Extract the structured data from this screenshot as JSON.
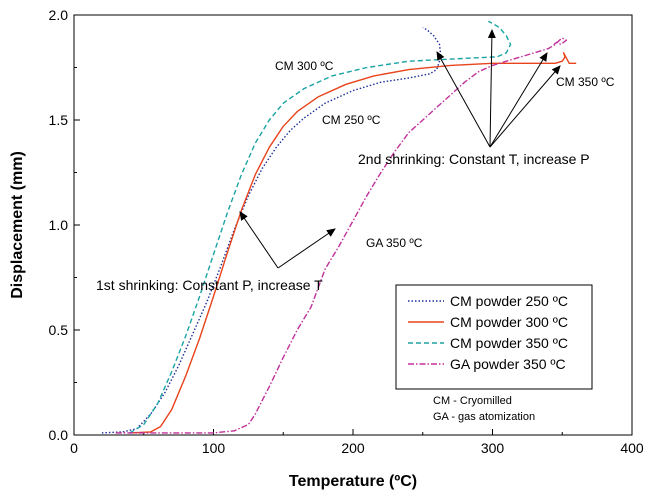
{
  "chart_data": {
    "type": "line",
    "xlabel": "Temperature (ºC)",
    "ylabel": "Displacement (mm)",
    "xlim": [
      0,
      400
    ],
    "ylim": [
      0,
      2.0
    ],
    "x_ticks": [
      "0",
      "100",
      "200",
      "300",
      "400"
    ],
    "y_ticks": [
      "0.0",
      "0.5",
      "1.0",
      "1.5",
      "2.0"
    ],
    "x_tick_values": [
      0,
      100,
      200,
      300,
      400
    ],
    "y_tick_values": [
      0,
      0.5,
      1.0,
      1.5,
      2.0
    ],
    "grid": false,
    "legend_position": "lower-right",
    "series": [
      {
        "name": "CM powder 250 ºC",
        "color": "#1f2f9a",
        "dash": "dotted",
        "points": [
          [
            20,
            0.01
          ],
          [
            35,
            0.015
          ],
          [
            45,
            0.03
          ],
          [
            55,
            0.1
          ],
          [
            65,
            0.2
          ],
          [
            75,
            0.33
          ],
          [
            85,
            0.48
          ],
          [
            95,
            0.63
          ],
          [
            105,
            0.8
          ],
          [
            115,
            0.98
          ],
          [
            125,
            1.14
          ],
          [
            135,
            1.27
          ],
          [
            145,
            1.37
          ],
          [
            155,
            1.45
          ],
          [
            165,
            1.51
          ],
          [
            180,
            1.58
          ],
          [
            200,
            1.64
          ],
          [
            220,
            1.68
          ],
          [
            240,
            1.7
          ],
          [
            255,
            1.72
          ],
          [
            260,
            1.74
          ],
          [
            263,
            1.8
          ],
          [
            262,
            1.86
          ],
          [
            258,
            1.9
          ],
          [
            253,
            1.93
          ],
          [
            250,
            1.94
          ]
        ]
      },
      {
        "name": "CM powder 300 ºC",
        "color": "#e8431b",
        "dash": "solid",
        "points": [
          [
            40,
            0.01
          ],
          [
            55,
            0.015
          ],
          [
            62,
            0.04
          ],
          [
            70,
            0.12
          ],
          [
            80,
            0.28
          ],
          [
            90,
            0.46
          ],
          [
            100,
            0.66
          ],
          [
            110,
            0.87
          ],
          [
            120,
            1.07
          ],
          [
            130,
            1.24
          ],
          [
            140,
            1.37
          ],
          [
            150,
            1.47
          ],
          [
            160,
            1.54
          ],
          [
            175,
            1.61
          ],
          [
            195,
            1.67
          ],
          [
            215,
            1.71
          ],
          [
            240,
            1.74
          ],
          [
            270,
            1.76
          ],
          [
            300,
            1.77
          ],
          [
            330,
            1.77
          ],
          [
            345,
            1.77
          ],
          [
            350,
            1.78
          ],
          [
            352,
            1.8
          ],
          [
            351,
            1.82
          ],
          [
            355,
            1.77
          ],
          [
            360,
            1.77
          ]
        ]
      },
      {
        "name": "CM powder 350 ºC",
        "color": "#1aa3a3",
        "dash": "dashed",
        "points": [
          [
            40,
            0.01
          ],
          [
            50,
            0.05
          ],
          [
            60,
            0.15
          ],
          [
            70,
            0.3
          ],
          [
            80,
            0.47
          ],
          [
            90,
            0.66
          ],
          [
            100,
            0.86
          ],
          [
            110,
            1.06
          ],
          [
            120,
            1.24
          ],
          [
            130,
            1.39
          ],
          [
            140,
            1.5
          ],
          [
            150,
            1.58
          ],
          [
            165,
            1.65
          ],
          [
            185,
            1.71
          ],
          [
            210,
            1.75
          ],
          [
            240,
            1.78
          ],
          [
            270,
            1.79
          ],
          [
            300,
            1.8
          ],
          [
            303,
            1.8
          ],
          [
            310,
            1.82
          ],
          [
            313,
            1.86
          ],
          [
            310,
            1.9
          ],
          [
            305,
            1.94
          ],
          [
            300,
            1.96
          ],
          [
            297,
            1.97
          ]
        ]
      },
      {
        "name": "GA powder 350 ºC",
        "color": "#c0309a",
        "dash": "dashdot",
        "points": [
          [
            30,
            0.01
          ],
          [
            60,
            0.01
          ],
          [
            100,
            0.01
          ],
          [
            115,
            0.02
          ],
          [
            125,
            0.05
          ],
          [
            130,
            0.1
          ],
          [
            140,
            0.23
          ],
          [
            150,
            0.37
          ],
          [
            160,
            0.5
          ],
          [
            170,
            0.61
          ],
          [
            180,
            0.79
          ],
          [
            190,
            0.9
          ],
          [
            200,
            1.02
          ],
          [
            210,
            1.14
          ],
          [
            220,
            1.25
          ],
          [
            230,
            1.35
          ],
          [
            240,
            1.44
          ],
          [
            250,
            1.5
          ],
          [
            260,
            1.56
          ],
          [
            270,
            1.62
          ],
          [
            280,
            1.68
          ],
          [
            290,
            1.73
          ],
          [
            300,
            1.76
          ],
          [
            310,
            1.78
          ],
          [
            320,
            1.8
          ],
          [
            330,
            1.82
          ],
          [
            340,
            1.84
          ],
          [
            345,
            1.86
          ],
          [
            348,
            1.88
          ],
          [
            350,
            1.89
          ],
          [
            353,
            1.88
          ],
          [
            349,
            1.86
          ],
          [
            346,
            1.87
          ],
          [
            344,
            1.86
          ]
        ]
      }
    ],
    "curve_labels": [
      "CM 300 ºC",
      "CM 250 ºC",
      "CM 350 ºC",
      "GA 350 ºC"
    ],
    "annotations": [
      "1st shrinking: Constant P, increase T",
      "2nd shrinking: Constant T, increase P"
    ],
    "notes": [
      "CM - Cryomilled",
      "GA - gas atomization"
    ]
  }
}
